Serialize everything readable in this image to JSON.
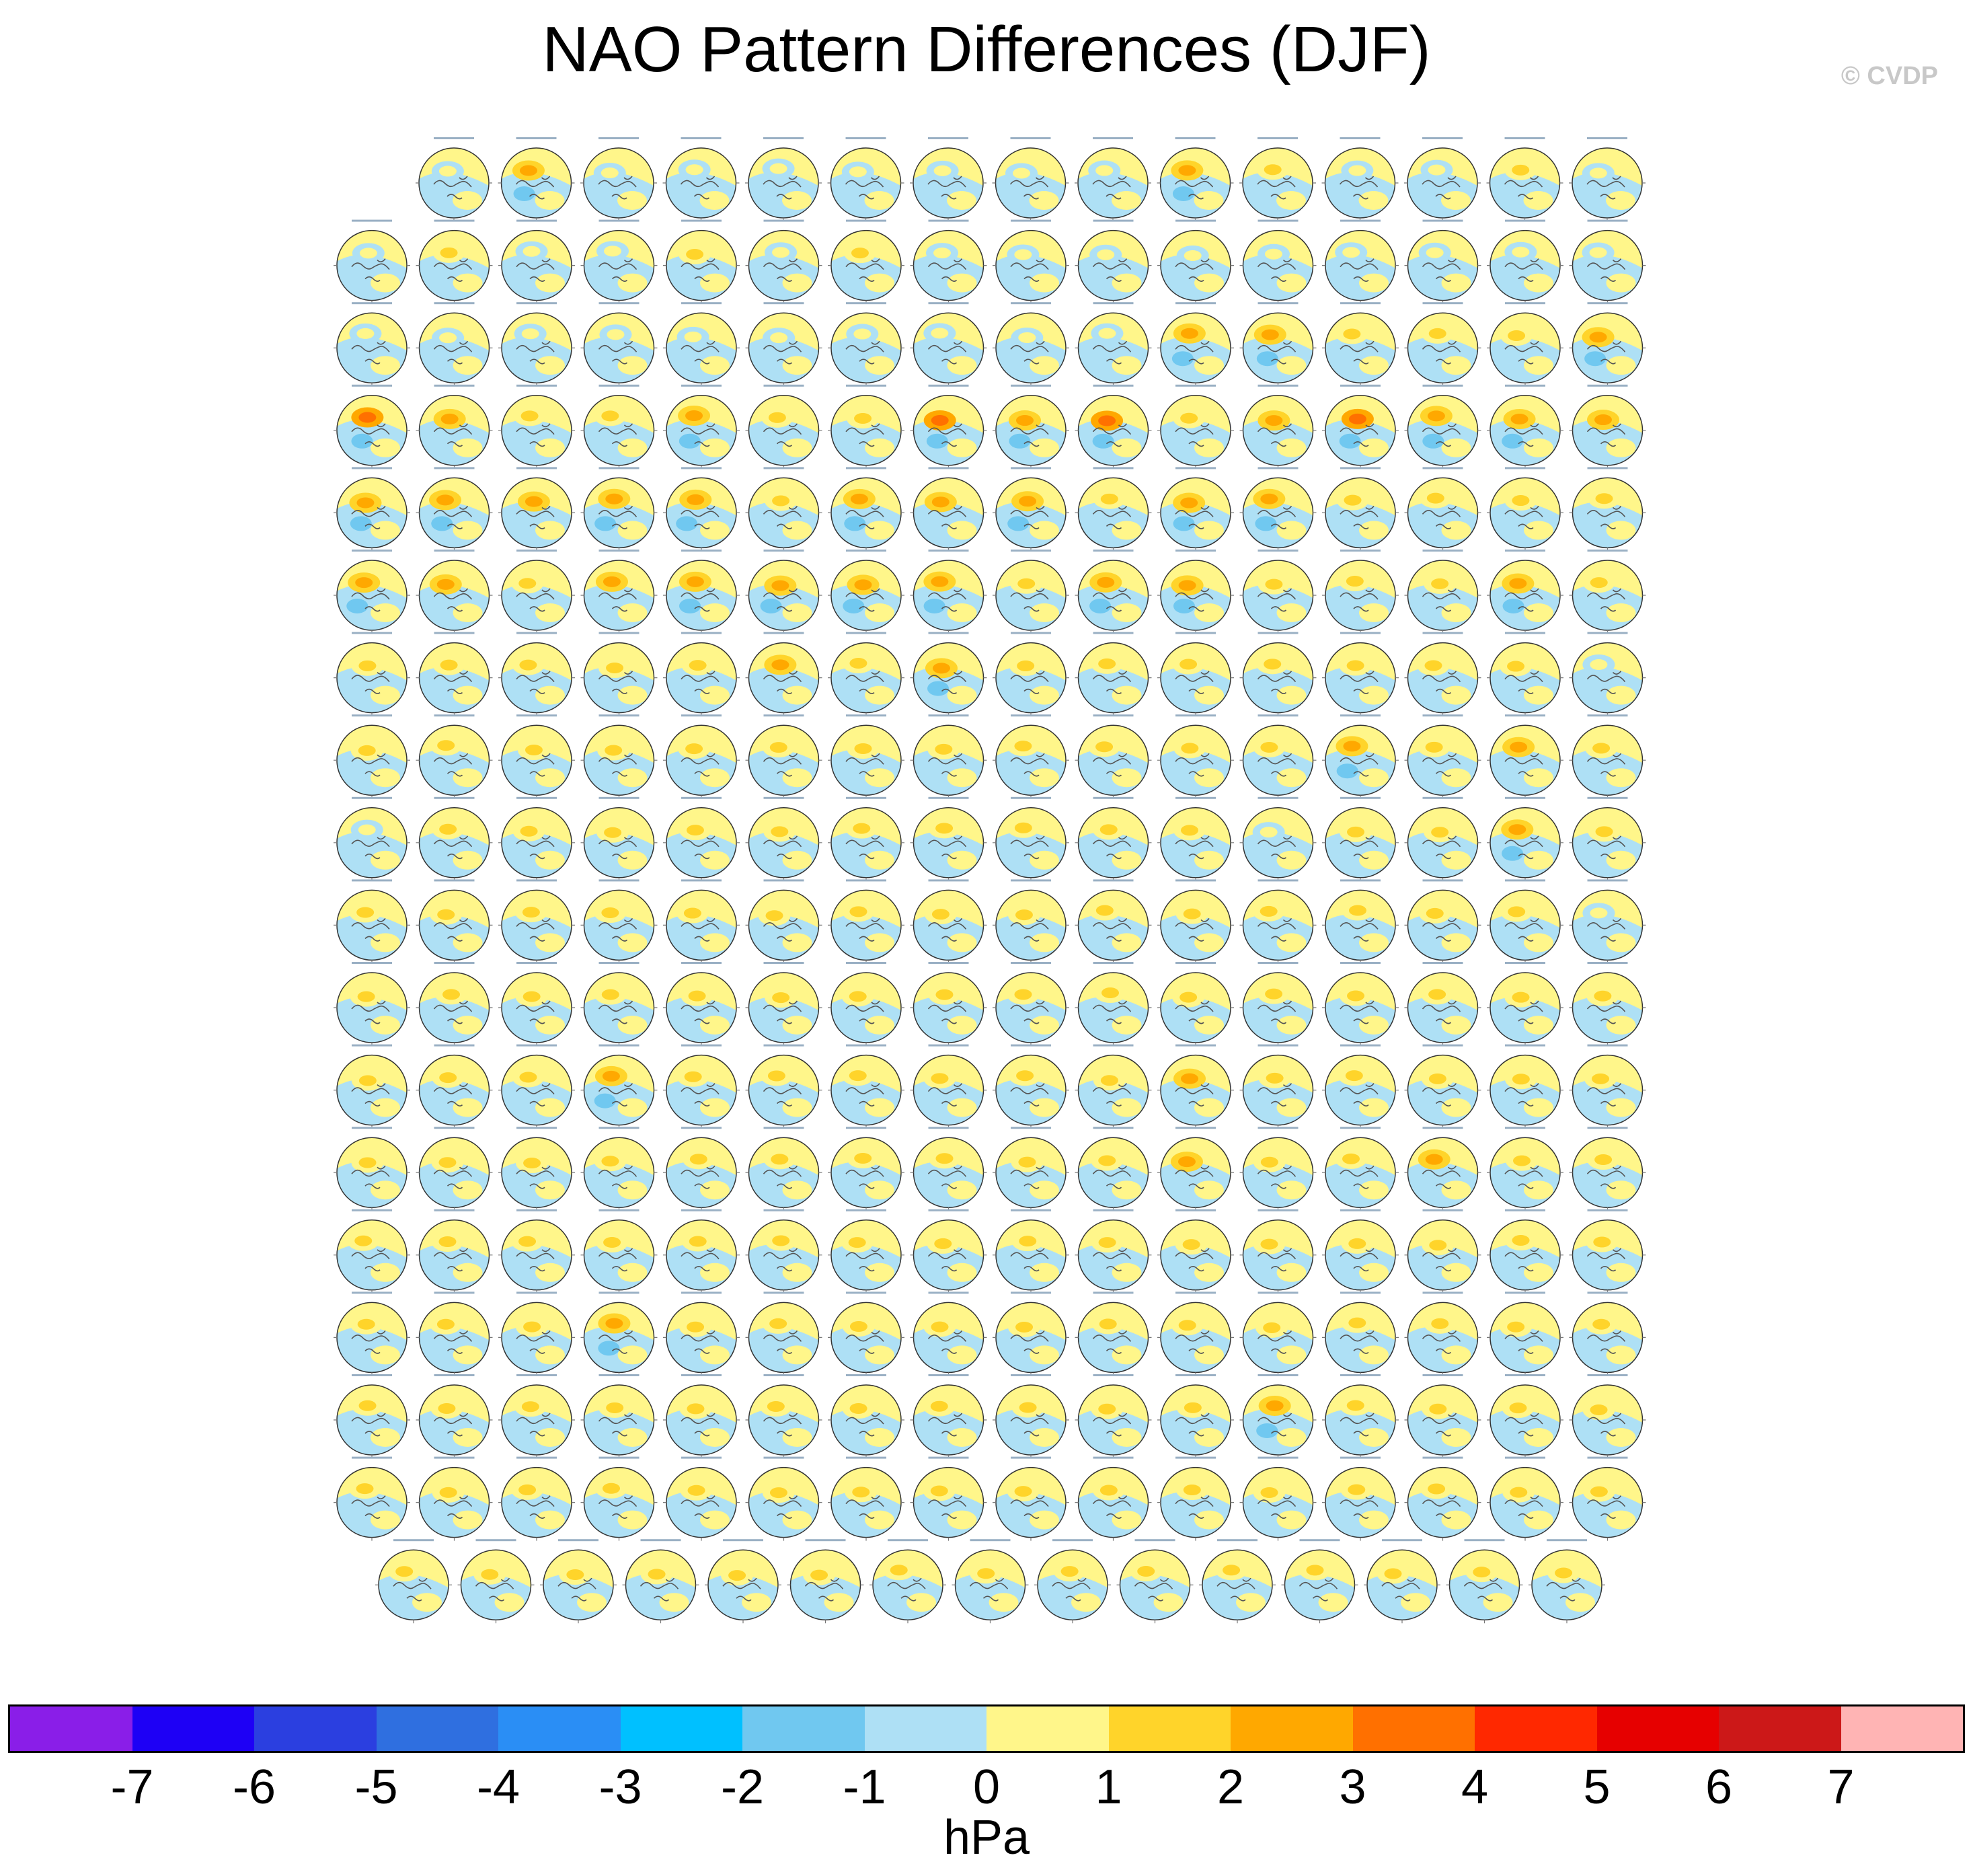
{
  "chart_data": {
    "type": "heatmap",
    "title": "NAO Pattern Differences (DJF)",
    "copyright": "© CVDP",
    "colorbar": {
      "units": "hPa",
      "tick_labels": [
        "-7",
        "-6",
        "-5",
        "-4",
        "-3",
        "-2",
        "-1",
        "0",
        "1",
        "2",
        "3",
        "4",
        "5",
        "6",
        "7"
      ],
      "colors": [
        "#8a1ee8",
        "#1e00f5",
        "#2b3fe0",
        "#2f6fe0",
        "#2a8ef5",
        "#00c0ff",
        "#70c8f0",
        "#aee0f5",
        "#fff68a",
        "#ffd42a",
        "#ffa800",
        "#ff7000",
        "#ff2800",
        "#e60000",
        "#cc1818",
        "#ffb4b4"
      ]
    },
    "panel_rows": [
      15,
      16,
      16,
      16,
      16,
      16,
      16,
      16,
      16,
      16,
      16,
      16,
      16,
      16,
      16,
      16,
      16,
      15
    ],
    "panel_anomalies": [
      [
        0.3,
        2.5,
        0.5,
        0.5,
        0.4,
        0.5,
        0.5,
        0.5,
        0.5,
        2.5,
        1.2,
        0.6,
        0.8,
        1.5,
        0.6
      ],
      [
        0.9,
        1.2,
        0.8,
        0.6,
        1.2,
        0.5,
        1.4,
        0.8,
        0.6,
        0.5,
        0.4,
        0.7,
        0.8,
        0.5,
        0.6,
        0.8
      ],
      [
        0.6,
        0.6,
        0.4,
        0.6,
        0.6,
        0.4,
        0.5,
        0.6,
        0.4,
        0.5,
        2.5,
        2.3,
        1.2,
        1.4,
        1.6,
        2.3
      ],
      [
        3.2,
        2.0,
        1.6,
        1.4,
        2.2,
        1.9,
        1.7,
        3.0,
        2.6,
        3.4,
        1.8,
        2.0,
        3.5,
        2.1,
        2.4,
        2.0
      ],
      [
        2.6,
        2.2,
        2.0,
        2.1,
        2.2,
        1.8,
        2.1,
        2.0,
        2.2,
        1.8,
        2.6,
        2.1,
        1.9,
        1.7,
        1.6,
        1.8
      ],
      [
        2.5,
        2.0,
        1.8,
        2.0,
        2.4,
        2.7,
        2.2,
        2.2,
        1.9,
        2.5,
        2.1,
        1.9,
        1.7,
        1.8,
        2.3,
        1.0
      ],
      [
        1.6,
        1.6,
        1.8,
        1.4,
        1.8,
        2.0,
        1.5,
        2.1,
        1.8,
        1.2,
        1.3,
        1.1,
        1.3,
        1.0,
        1.0,
        0.9
      ],
      [
        1.1,
        1.2,
        1.6,
        1.8,
        1.2,
        1.5,
        1.1,
        1.8,
        1.1,
        1.6,
        1.5,
        1.5,
        2.4,
        1.1,
        2.0,
        1.0
      ],
      [
        0.9,
        1.2,
        1.1,
        1.2,
        1.3,
        1.0,
        1.5,
        1.6,
        1.4,
        1.6,
        1.3,
        0.9,
        1.4,
        1.6,
        2.2,
        1.9
      ],
      [
        1.4,
        1.1,
        1.7,
        1.4,
        1.5,
        1.1,
        1.7,
        1.5,
        1.2,
        1.3,
        1.6,
        1.1,
        1.0,
        1.2,
        1.5,
        0.9
      ],
      [
        1.4,
        1.5,
        1.2,
        1.3,
        1.2,
        1.1,
        1.7,
        1.8,
        1.9,
        1.4,
        1.6,
        1.1,
        1.2,
        1.4,
        1.7,
        1.3
      ],
      [
        1.3,
        1.8,
        1.6,
        2.1,
        1.7,
        1.3,
        1.5,
        1.4,
        1.3,
        1.2,
        2.0,
        1.3,
        1.3,
        1.5,
        1.6,
        1.5
      ],
      [
        1.5,
        1.3,
        1.4,
        1.5,
        1.2,
        1.4,
        1.5,
        1.5,
        1.2,
        1.1,
        2.0,
        1.2,
        1.6,
        2.0,
        1.3,
        1.4
      ],
      [
        1.8,
        1.6,
        1.5,
        1.9,
        1.7,
        1.5,
        1.3,
        1.3,
        1.6,
        1.3,
        1.4,
        1.5,
        1.7,
        1.2,
        1.9,
        1.2
      ],
      [
        1.4,
        1.7,
        1.5,
        2.2,
        1.4,
        1.3,
        1.6,
        1.7,
        1.4,
        1.3,
        1.5,
        1.6,
        1.3,
        1.4,
        1.5,
        1.4
      ],
      [
        1.2,
        1.4,
        1.3,
        1.3,
        1.3,
        1.2,
        1.4,
        1.6,
        1.5,
        1.2,
        1.4,
        2.1,
        1.2,
        1.4,
        1.3,
        1.6
      ],
      [
        1.7,
        1.6,
        1.4,
        1.3,
        1.5,
        1.4,
        1.3,
        1.4,
        1.4,
        1.4,
        1.3,
        1.3,
        1.5,
        1.4,
        1.4,
        1.3
      ],
      [
        1.5,
        1.6,
        1.9,
        1.5,
        1.7,
        1.6,
        1.5,
        1.4,
        1.6,
        1.6,
        1.8,
        1.6,
        1.6,
        1.5,
        1.4
      ]
    ]
  }
}
